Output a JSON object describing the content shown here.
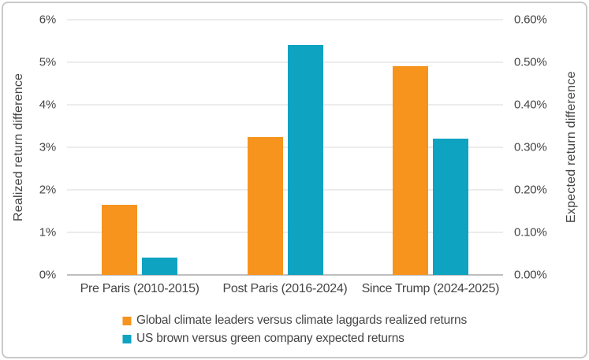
{
  "chart_data": {
    "type": "bar",
    "categories": [
      "Pre Paris (2010-2015)",
      "Post Paris (2016-2024)",
      "Since Trump (2024-2025)"
    ],
    "series": [
      {
        "name": "Global climate leaders versus climate laggards realized returns",
        "axis": "left",
        "color": "#F7941E",
        "values": [
          1.65,
          3.25,
          4.9
        ]
      },
      {
        "name": "US brown versus green company expected returns",
        "axis": "right",
        "color": "#0FA3C2",
        "values": [
          0.04,
          0.54,
          0.32
        ]
      }
    ],
    "left_axis": {
      "label": "Realized return difference",
      "min": 0,
      "max": 6,
      "ticks": [
        "0%",
        "1%",
        "2%",
        "3%",
        "4%",
        "5%",
        "6%"
      ]
    },
    "right_axis": {
      "label": "Expected return difference",
      "min": 0,
      "max": 0.6,
      "ticks": [
        "0.00%",
        "0.10%",
        "0.20%",
        "0.30%",
        "0.40%",
        "0.50%",
        "0.60%"
      ]
    },
    "grid": true,
    "legend_position": "bottom",
    "title": ""
  },
  "colors": {
    "orange": "#F7941E",
    "teal": "#0FA3C2",
    "gridline": "#d9d9d9",
    "axis_line": "#bfbfbf",
    "text": "#454545",
    "border": "#c9c9c9",
    "background": "#ffffff"
  }
}
